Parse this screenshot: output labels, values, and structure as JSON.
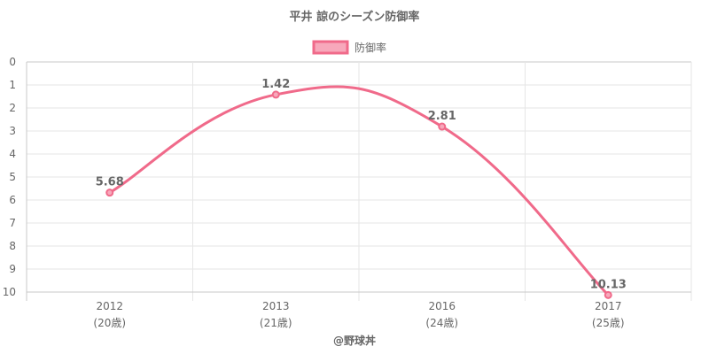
{
  "chart_data": {
    "type": "line",
    "title": "平井 諒のシーズン防御率",
    "legend": {
      "position": "top",
      "entries": [
        "防御率"
      ]
    },
    "x_labels": [
      {
        "year": "2012",
        "age": "(20歳)"
      },
      {
        "year": "2013",
        "age": "(21歳)"
      },
      {
        "year": "2016",
        "age": "(24歳)"
      },
      {
        "year": "2017",
        "age": "(25歳)"
      }
    ],
    "series": [
      {
        "name": "防御率",
        "values": [
          5.68,
          1.42,
          2.81,
          10.13
        ],
        "labels": [
          "5.68",
          "1.42",
          "2.81",
          "10.13"
        ],
        "color": "#f06a8a"
      }
    ],
    "y_axis": {
      "min": 0,
      "max": 10,
      "reversed": true,
      "ticks": [
        "0",
        "1",
        "2",
        "3",
        "4",
        "5",
        "6",
        "7",
        "8",
        "9",
        "10"
      ]
    },
    "grid": true,
    "footer": "@野球丼"
  }
}
